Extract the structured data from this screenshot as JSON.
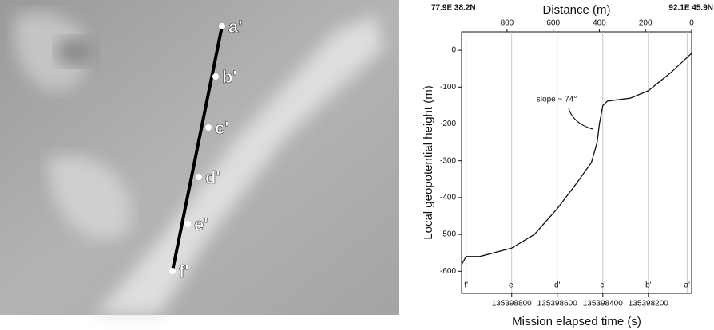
{
  "image_labels": [
    "a'",
    "b'",
    "c'",
    "d'",
    "e'",
    "f'"
  ],
  "chart_data": {
    "type": "line",
    "corner_labels": [
      "77.9E 38.2N",
      "92.1E 45.9N"
    ],
    "xlabel": "Mission elapsed time (s)",
    "ylabel": "Local geopotential height (m)",
    "x2label": "Distance (m)",
    "annotation": "slope ~ 74°",
    "x": [
      135399021,
      135399000,
      135398940,
      135398800,
      135398700,
      135398600,
      135398520,
      135398450,
      135398425,
      135398415,
      135398400,
      135398380,
      135398280,
      135398200,
      135398100,
      135398010
    ],
    "values": [
      -583,
      -560,
      -560,
      -537,
      -500,
      -430,
      -365,
      -305,
      -250,
      -200,
      -150,
      -138,
      -130,
      -110,
      -60,
      -8
    ],
    "color": "#111111",
    "xlim": [
      135399020,
      135398010
    ],
    "xticks": [
      135398800,
      135398600,
      135398400,
      135398200
    ],
    "ylim": [
      -660,
      50
    ],
    "yticks": [
      0,
      -100,
      -200,
      -300,
      -400,
      -500,
      -600
    ],
    "x2lim": [
      997,
      0
    ],
    "x2ticks": [
      800,
      600,
      400,
      200,
      0
    ],
    "markers": [
      {
        "label": "f'",
        "x": 135399000
      },
      {
        "label": "e'",
        "x": 135398800
      },
      {
        "label": "d'",
        "x": 135398600
      },
      {
        "label": "c'",
        "x": 135398400
      },
      {
        "label": "b'",
        "x": 135398200
      },
      {
        "label": "a'",
        "x": 135398030
      }
    ]
  }
}
